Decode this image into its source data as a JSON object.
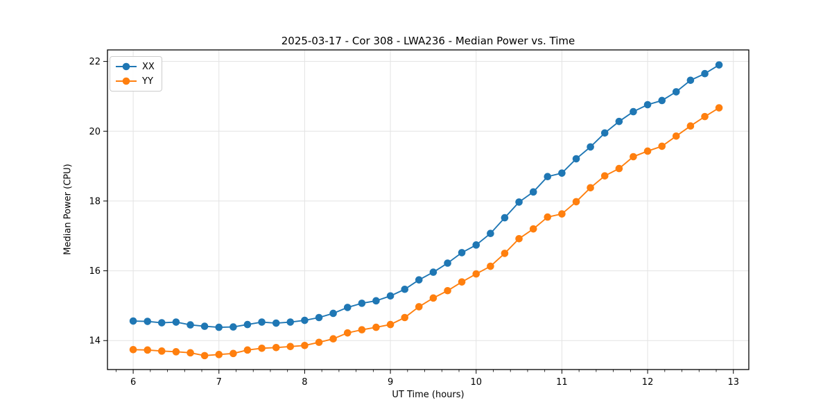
{
  "title": "2025-03-17 - Cor 308 - LWA236 - Median Power vs. Time",
  "colors": {
    "series_xx": "#1f77b4",
    "series_yy": "#ff7f0e",
    "grid": "#e3e3e3",
    "spine": "#000000",
    "background": "#ffffff"
  },
  "chart_data": {
    "type": "line",
    "title": "2025-03-17 - Cor 308 - LWA236 - Median Power vs. Time",
    "xlabel": "UT Time (hours)",
    "ylabel": "Median Power (CPU)",
    "xlim": [
      5.7,
      13.18
    ],
    "ylim": [
      13.17,
      22.33
    ],
    "xticks": [
      6,
      7,
      8,
      9,
      10,
      11,
      12,
      13
    ],
    "yticks": [
      14,
      16,
      18,
      20,
      22
    ],
    "x_minor_step": 0.2,
    "grid": true,
    "legend_position": "upper left",
    "marker": "circle",
    "x": [
      6.0,
      6.167,
      6.333,
      6.5,
      6.667,
      6.833,
      7.0,
      7.167,
      7.333,
      7.5,
      7.667,
      7.833,
      8.0,
      8.167,
      8.333,
      8.5,
      8.667,
      8.833,
      9.0,
      9.167,
      9.333,
      9.5,
      9.667,
      9.833,
      10.0,
      10.167,
      10.333,
      10.5,
      10.667,
      10.833,
      11.0,
      11.167,
      11.333,
      11.5,
      11.667,
      11.833,
      12.0,
      12.167,
      12.333,
      12.5,
      12.667,
      12.833
    ],
    "series": [
      {
        "name": "XX",
        "color": "#1f77b4",
        "values": [
          14.56,
          14.55,
          14.51,
          14.53,
          14.45,
          14.41,
          14.38,
          14.39,
          14.46,
          14.53,
          14.5,
          14.53,
          14.58,
          14.66,
          14.78,
          14.95,
          15.07,
          15.14,
          15.28,
          15.47,
          15.74,
          15.96,
          16.22,
          16.52,
          16.74,
          17.07,
          17.52,
          17.97,
          18.26,
          18.7,
          18.8,
          19.21,
          19.55,
          19.95,
          20.28,
          20.56,
          20.76,
          20.88,
          21.13,
          21.46,
          21.65,
          21.9
        ]
      },
      {
        "name": "YY",
        "color": "#ff7f0e",
        "values": [
          13.74,
          13.73,
          13.7,
          13.68,
          13.65,
          13.57,
          13.6,
          13.63,
          13.73,
          13.78,
          13.8,
          13.83,
          13.86,
          13.95,
          14.05,
          14.22,
          14.31,
          14.38,
          14.46,
          14.66,
          14.97,
          15.22,
          15.43,
          15.68,
          15.91,
          16.13,
          16.5,
          16.92,
          17.2,
          17.54,
          17.63,
          17.98,
          18.38,
          18.72,
          18.93,
          19.27,
          19.43,
          19.57,
          19.86,
          20.15,
          20.42,
          20.67
        ]
      }
    ]
  }
}
